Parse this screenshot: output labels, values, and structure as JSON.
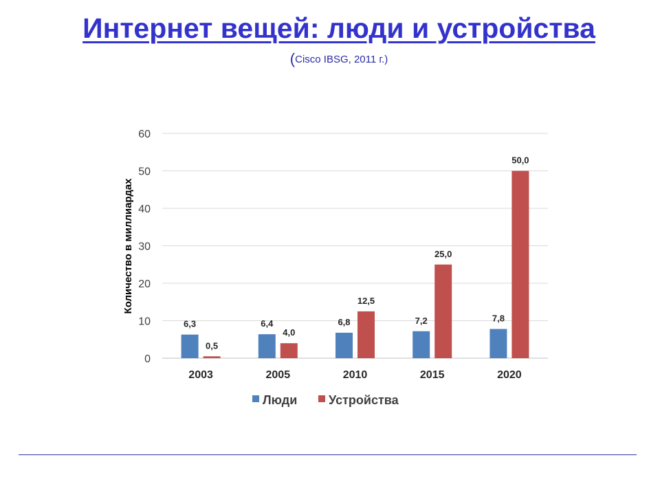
{
  "slide": {
    "title": "Интернет вещей: люди  и устройства",
    "source_open": "(",
    "source_text": "Cisco IBSG, 2011 г.",
    "source_close": ")"
  },
  "colors": {
    "title": "#3333cc",
    "series_people": "#4f81bd",
    "series_devices": "#c0504d",
    "grid": "#d9d9d9",
    "footer_line": "#3333aa"
  },
  "chart_data": {
    "type": "bar",
    "title": "",
    "xlabel": "",
    "ylabel": "Количество в  миллиардах",
    "ylim": [
      0,
      60
    ],
    "yticks": [
      0,
      10,
      20,
      30,
      40,
      50,
      60
    ],
    "grid": true,
    "legend_position": "bottom",
    "categories": [
      "2003",
      "2005",
      "2010",
      "2015",
      "2020"
    ],
    "series": [
      {
        "name": "Люди",
        "color": "#4f81bd",
        "values": [
          6.3,
          6.4,
          6.8,
          7.2,
          7.8
        ],
        "labels": [
          "6,3",
          "6,4",
          "6,8",
          "7,2",
          "7,8"
        ]
      },
      {
        "name": "Устройства",
        "color": "#c0504d",
        "values": [
          0.5,
          4.0,
          12.5,
          25.0,
          50.0
        ],
        "labels": [
          "0,5",
          "4,0",
          "12,5",
          "25,0",
          "50,0"
        ]
      }
    ]
  }
}
